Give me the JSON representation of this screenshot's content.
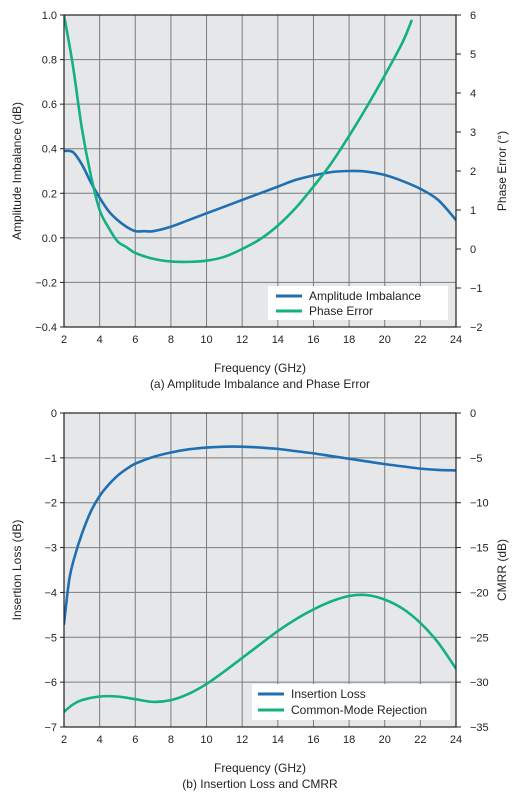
{
  "chart_data": [
    {
      "type": "line",
      "caption": "(a) Amplitude Imbalance and Phase Error",
      "xlabel": "Frequency (GHz)",
      "ylabel": "Amplitude Imbalance (dB)",
      "y2label": "Phase Error (°)",
      "xlim": [
        2,
        24
      ],
      "ylim": [
        -0.4,
        1.0
      ],
      "y2lim": [
        -2,
        6
      ],
      "xticks": [
        2,
        4,
        6,
        8,
        10,
        12,
        14,
        16,
        18,
        20,
        22,
        24
      ],
      "yticks": [
        "1.0",
        "0.8",
        "0.6",
        "0.4",
        "0.2",
        "0.0",
        "−0.2",
        "−0.4"
      ],
      "y2ticks": [
        "6",
        "5",
        "4",
        "3",
        "2",
        "1",
        "0",
        "−1",
        "−2"
      ],
      "grid": true,
      "legend_position": "bottom-right",
      "series": [
        {
          "name": "Amplitude Imbalance",
          "axis": "left",
          "color": "#1f6fb2",
          "x": [
            2,
            2.5,
            3,
            3.5,
            4,
            4.5,
            5,
            5.5,
            6,
            6.5,
            7,
            8,
            9,
            10,
            11,
            12,
            13,
            14,
            15,
            16,
            17,
            18,
            19,
            20,
            21,
            22,
            23,
            24
          ],
          "y": [
            0.39,
            0.385,
            0.33,
            0.25,
            0.18,
            0.12,
            0.08,
            0.05,
            0.03,
            0.03,
            0.03,
            0.05,
            0.08,
            0.11,
            0.14,
            0.17,
            0.2,
            0.23,
            0.26,
            0.28,
            0.295,
            0.3,
            0.297,
            0.282,
            0.255,
            0.22,
            0.17,
            0.08
          ]
        },
        {
          "name": "Phase Error",
          "axis": "right",
          "color": "#12b083",
          "x": [
            2,
            2.5,
            3,
            3.5,
            4,
            4.5,
            5,
            5.5,
            6,
            7,
            8,
            9,
            10,
            11,
            12,
            13,
            14,
            15,
            16,
            17,
            18,
            19,
            20,
            21,
            21.5
          ],
          "y": [
            6.0,
            4.7,
            3.1,
            1.9,
            1.0,
            0.55,
            0.2,
            0.05,
            -0.1,
            -0.25,
            -0.32,
            -0.33,
            -0.3,
            -0.2,
            0.0,
            0.25,
            0.6,
            1.05,
            1.6,
            2.2,
            2.9,
            3.65,
            4.45,
            5.3,
            5.85
          ]
        }
      ]
    },
    {
      "type": "line",
      "caption": "(b) Insertion Loss and CMRR",
      "xlabel": "Frequency (GHz)",
      "ylabel": "Insertion Loss (dB)",
      "y2label": "CMRR (dB)",
      "xlim": [
        2,
        24
      ],
      "ylim": [
        -7,
        0
      ],
      "y2lim": [
        -35,
        0
      ],
      "xticks": [
        2,
        4,
        6,
        8,
        10,
        12,
        14,
        16,
        18,
        20,
        22,
        24
      ],
      "yticks": [
        "0",
        "−1",
        "−2",
        "−3",
        "−4",
        "−5",
        "−6",
        "−7"
      ],
      "y2ticks": [
        "0",
        "−5",
        "−10",
        "−15",
        "−20",
        "−25",
        "−30",
        "−35"
      ],
      "grid": true,
      "legend_position": "bottom-right",
      "series": [
        {
          "name": "Insertion Loss",
          "axis": "left",
          "color": "#1f6fb2",
          "x": [
            2,
            2.3,
            2.6,
            3,
            3.5,
            4,
            4.5,
            5,
            5.5,
            6,
            7,
            8,
            9,
            10,
            11,
            12,
            13,
            14,
            15,
            16,
            17,
            18,
            19,
            20,
            21,
            22,
            23,
            24
          ],
          "y": [
            -4.7,
            -3.7,
            -3.2,
            -2.7,
            -2.2,
            -1.85,
            -1.6,
            -1.4,
            -1.25,
            -1.13,
            -0.98,
            -0.88,
            -0.81,
            -0.77,
            -0.75,
            -0.75,
            -0.77,
            -0.8,
            -0.85,
            -0.9,
            -0.96,
            -1.02,
            -1.08,
            -1.14,
            -1.19,
            -1.24,
            -1.27,
            -1.28
          ]
        },
        {
          "name": "Common-Mode Rejection",
          "axis": "right",
          "color": "#12b083",
          "x": [
            2,
            2.5,
            3,
            4,
            5,
            6,
            7,
            8,
            9,
            10,
            11,
            12,
            13,
            14,
            15,
            16,
            17,
            18,
            19,
            20,
            21,
            22,
            23,
            24
          ],
          "y": [
            -33.3,
            -32.5,
            -32.0,
            -31.6,
            -31.6,
            -31.9,
            -32.2,
            -32.0,
            -31.3,
            -30.2,
            -28.8,
            -27.3,
            -25.8,
            -24.3,
            -23.0,
            -21.9,
            -21.0,
            -20.4,
            -20.3,
            -20.8,
            -21.8,
            -23.4,
            -25.6,
            -28.5
          ]
        }
      ]
    }
  ]
}
